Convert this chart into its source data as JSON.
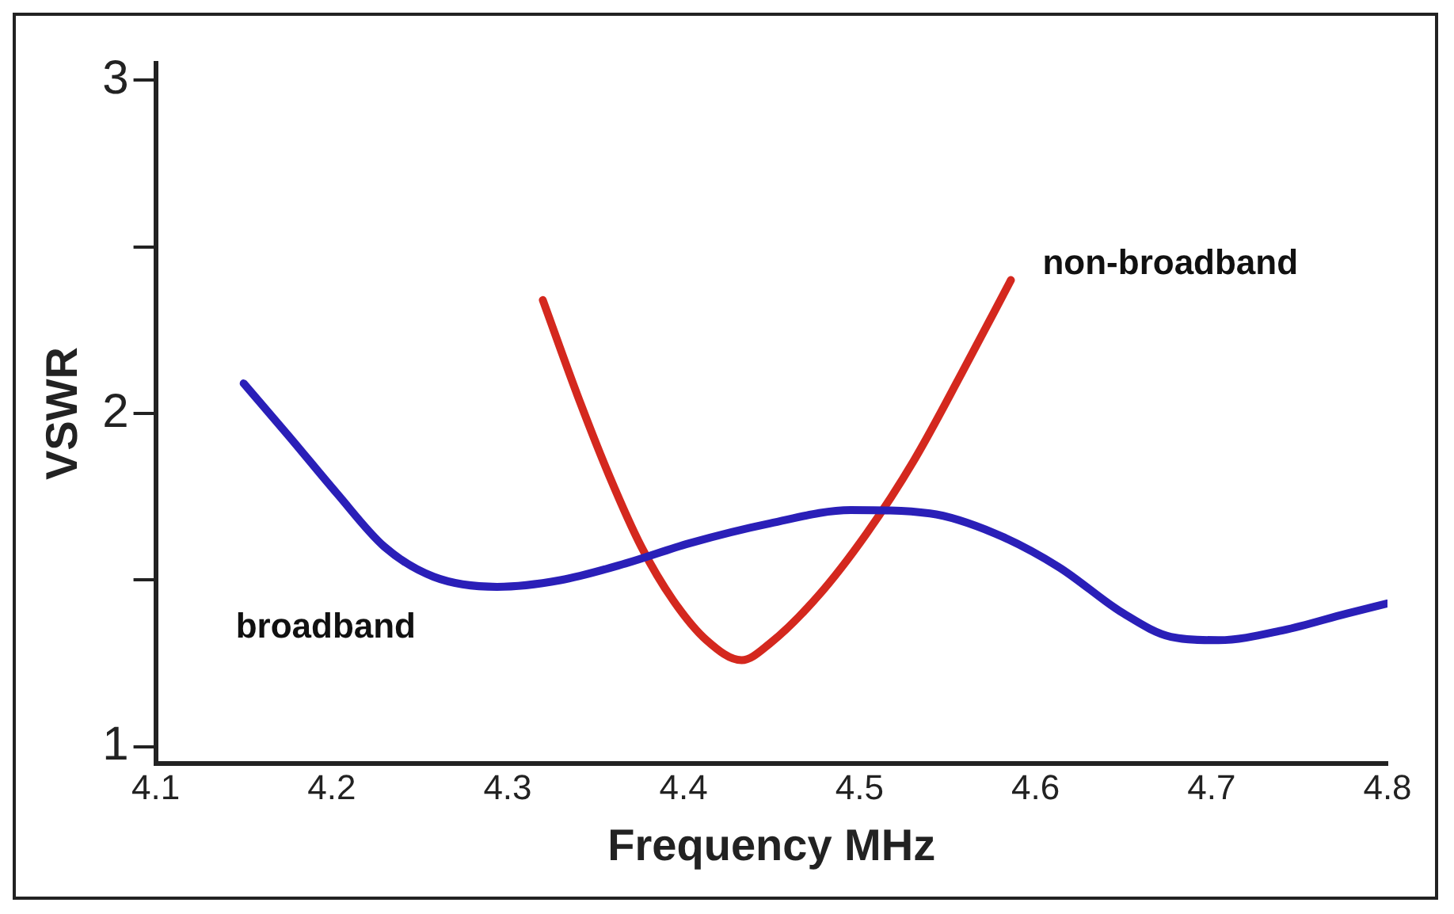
{
  "chart_data": {
    "type": "line",
    "xlabel": "Frequency MHz",
    "ylabel": "VSWR",
    "xlim": [
      4.1,
      4.8
    ],
    "xticks": [
      4.1,
      4.2,
      4.3,
      4.4,
      4.5,
      4.6,
      4.7,
      4.8
    ],
    "ylim": [
      0.95,
      3.05
    ],
    "yticks": [
      1,
      {
        "value": 1.5,
        "label": null
      },
      2,
      {
        "value": 2.5,
        "label": null
      },
      3
    ],
    "grid": false,
    "legend": false,
    "marker": "none",
    "line_style": "solid",
    "series": [
      {
        "name": "broadband",
        "color": "#2a1fb8",
        "x": [
          4.15,
          4.176,
          4.203,
          4.23,
          4.258,
          4.294,
          4.33,
          4.367,
          4.403,
          4.449,
          4.495,
          4.54,
          4.577,
          4.613,
          4.65,
          4.677,
          4.704,
          4.741,
          4.777,
          4.8
        ],
        "values": [
          2.09,
          1.93,
          1.76,
          1.6,
          1.51,
          1.48,
          1.5,
          1.55,
          1.61,
          1.67,
          1.71,
          1.7,
          1.64,
          1.54,
          1.4,
          1.33,
          1.32,
          1.35,
          1.4,
          1.43
        ]
      },
      {
        "name": "non-broadband",
        "color": "#d4281e",
        "x": [
          4.32,
          4.34,
          4.358,
          4.376,
          4.394,
          4.413,
          4.433,
          4.449,
          4.476,
          4.504,
          4.531,
          4.558,
          4.586
        ],
        "values": [
          2.34,
          2.05,
          1.81,
          1.6,
          1.44,
          1.32,
          1.26,
          1.31,
          1.45,
          1.64,
          1.86,
          2.12,
          2.4
        ]
      }
    ]
  }
}
